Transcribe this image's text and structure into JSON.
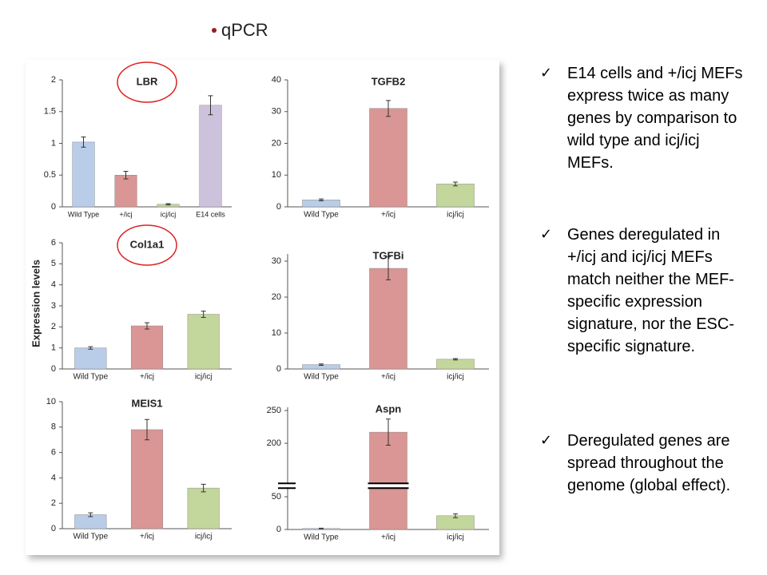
{
  "heading": "qPCR",
  "y_axis_label": "Expression levels",
  "chart_data": [
    {
      "type": "bar",
      "title": "LBR",
      "highlight": true,
      "categories": [
        "Wild Type",
        "+/icj",
        "icj/icj",
        "E14 cells"
      ],
      "values": [
        1.02,
        0.5,
        0.04,
        1.6
      ],
      "errors": [
        0.08,
        0.06,
        0.01,
        0.15
      ],
      "colors": [
        "#b9cde8",
        "#d99694",
        "#c3d69b",
        "#cdc2dc"
      ],
      "ylim": [
        0,
        2
      ],
      "yticks": [
        0,
        0.5,
        1,
        1.5,
        2
      ]
    },
    {
      "type": "bar",
      "title": "TGFB2",
      "highlight": false,
      "categories": [
        "Wild Type",
        "+/icj",
        "icj/icj"
      ],
      "values": [
        2.2,
        31,
        7.2
      ],
      "errors": [
        0.3,
        2.5,
        0.6
      ],
      "colors": [
        "#b9cde8",
        "#d99694",
        "#c3d69b"
      ],
      "ylim": [
        0,
        40
      ],
      "yticks": [
        0,
        10,
        20,
        30,
        40
      ]
    },
    {
      "type": "bar",
      "title": "Col1a1",
      "highlight": true,
      "categories": [
        "Wild Type",
        "+/icj",
        "icj/icj"
      ],
      "values": [
        1.0,
        2.05,
        2.6
      ],
      "errors": [
        0.06,
        0.15,
        0.15
      ],
      "colors": [
        "#b9cde8",
        "#d99694",
        "#c3d69b"
      ],
      "ylim": [
        0,
        6
      ],
      "yticks": [
        0,
        1,
        2,
        3,
        4,
        5,
        6
      ]
    },
    {
      "type": "bar",
      "title": "TGFBi",
      "highlight": false,
      "categories": [
        "Wild Type",
        "+/icj",
        "icj/icj"
      ],
      "values": [
        1.2,
        28,
        2.7
      ],
      "errors": [
        0.2,
        3.2,
        0.2
      ],
      "colors": [
        "#b9cde8",
        "#d99694",
        "#c3d69b"
      ],
      "ylim": [
        0,
        32
      ],
      "yticks": [
        0,
        10,
        20,
        30
      ]
    },
    {
      "type": "bar",
      "title": "MEIS1",
      "highlight": false,
      "categories": [
        "Wild Type",
        "+/icj",
        "icj/icj"
      ],
      "values": [
        1.1,
        7.8,
        3.2
      ],
      "errors": [
        0.15,
        0.8,
        0.3
      ],
      "colors": [
        "#b9cde8",
        "#d99694",
        "#c3d69b"
      ],
      "ylim": [
        0,
        10
      ],
      "yticks": [
        0,
        2,
        4,
        6,
        8,
        10
      ]
    },
    {
      "type": "bar",
      "title": "Aspn",
      "highlight": false,
      "categories": [
        "Wild Type",
        "+/icj",
        "icj/icj"
      ],
      "values": [
        1.5,
        217,
        21
      ],
      "errors": [
        0.5,
        20,
        3
      ],
      "colors": [
        "#b9cde8",
        "#d99694",
        "#c3d69b"
      ],
      "ylim": [
        0,
        255
      ],
      "axis_break": [
        62,
        140
      ],
      "yticks": [
        0,
        50,
        200,
        250
      ]
    }
  ],
  "bullets": [
    "E14 cells and +/icj MEFs express twice as many genes by comparison to wild type and icj/icj MEFs.",
    "Genes deregulated in +/icj and icj/icj MEFs match neither the MEF-specific expression signature, nor the ESC-specific signature.",
    "Deregulated genes are spread throughout the genome (global effect)."
  ]
}
